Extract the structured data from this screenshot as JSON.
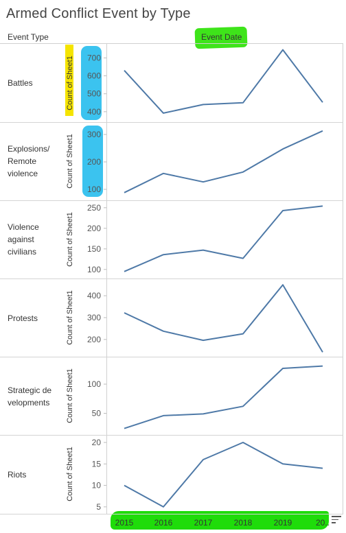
{
  "title": "Armed Conflict Event by Type",
  "header": {
    "row_field": "Event Type",
    "col_field": "Event Date"
  },
  "colors": {
    "line": "#4e79a7",
    "highlight_yellow": "#f5e400",
    "highlight_cyan": "#3bc3ef",
    "highlight_green": "#1fdc0a"
  },
  "chart_data": {
    "type": "line",
    "x": [
      "2015",
      "2016",
      "2017",
      "2018",
      "2019",
      "20.."
    ],
    "xlabel": "Event Date",
    "panels": [
      {
        "label": "Battles",
        "ylabel": "Count of Sheet1",
        "yticks": [
          400,
          500,
          600,
          700
        ],
        "ylim": [
          365,
          755
        ],
        "values": [
          630,
          392,
          440,
          450,
          745,
          452
        ]
      },
      {
        "label": "Explosions/ Remote violence",
        "ylabel": "Count of Sheet1",
        "yticks": [
          100,
          200,
          300
        ],
        "ylim": [
          75,
          330
        ],
        "values": [
          88,
          158,
          127,
          163,
          247,
          313
        ]
      },
      {
        "label": "Violence against civilians",
        "ylabel": "Count of Sheet1",
        "yticks": [
          100,
          150,
          200,
          250
        ],
        "ylim": [
          88,
          258
        ],
        "values": [
          95,
          136,
          147,
          127,
          243,
          254
        ]
      },
      {
        "label": "Protests",
        "ylabel": "Count of Sheet1",
        "yticks": [
          200,
          300,
          400
        ],
        "ylim": [
          140,
          460
        ],
        "values": [
          322,
          238,
          196,
          226,
          450,
          142
        ]
      },
      {
        "label": "Strategic developments",
        "ylabel": "Count of Sheet1",
        "yticks": [
          50,
          100
        ],
        "ylim": [
          20,
          140
        ],
        "values": [
          24,
          46,
          49,
          62,
          127,
          131
        ]
      },
      {
        "label": "Riots",
        "ylabel": "Count of Sheet1",
        "yticks": [
          5,
          10,
          15,
          20
        ],
        "ylim": [
          4.5,
          20.8
        ],
        "values": [
          10,
          5,
          16,
          20,
          15,
          14
        ]
      }
    ]
  },
  "labels": {
    "battles": "Battles",
    "explosions": [
      "Explosions/",
      "Remote",
      "violence"
    ],
    "violence": [
      "Violence",
      "against",
      "civilians"
    ],
    "protests": "Protests",
    "strategic": [
      "Strategic de",
      "velopments"
    ],
    "riots": "Riots"
  }
}
